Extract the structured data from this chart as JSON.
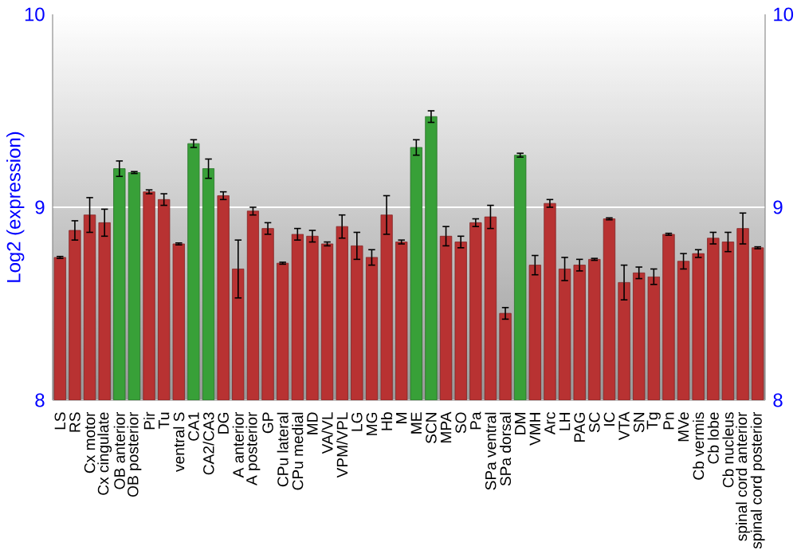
{
  "chart_data": {
    "type": "bar",
    "ylabel": "Log2 (expression)",
    "categories": [
      "LS",
      "RS",
      "Cx motor",
      "Cx cingulate",
      "OB anterior",
      "OB posterior",
      "Pir",
      "Tu",
      "ventral S",
      "CA1",
      "CA2/CA3",
      "DG",
      "A anterior",
      "A posterior",
      "GP",
      "CPu lateral",
      "CPu medial",
      "MD",
      "VA/VL",
      "VPM/VPL",
      "LG",
      "MG",
      "Hb",
      "M",
      "ME",
      "SCN",
      "MPA",
      "SO",
      "Pa",
      "SPa ventral",
      "SPa dorsal",
      "DM",
      "VMH",
      "Arc",
      "LH",
      "PAG",
      "SC",
      "IC",
      "VTA",
      "SN",
      "Tg",
      "Pn",
      "MVe",
      "Cb vermis",
      "Cb lobe",
      "Cb nucleus",
      "spinal cord anterior",
      "spinal cord posterior"
    ],
    "values": [
      8.74,
      8.88,
      8.96,
      8.92,
      9.2,
      9.18,
      9.08,
      9.04,
      8.81,
      9.33,
      9.2,
      9.06,
      8.68,
      8.98,
      8.89,
      8.71,
      8.86,
      8.85,
      8.81,
      8.9,
      8.8,
      8.74,
      8.96,
      8.82,
      9.31,
      9.47,
      8.85,
      8.82,
      8.92,
      8.95,
      8.45,
      9.27,
      8.7,
      9.02,
      8.68,
      8.7,
      8.73,
      8.94,
      8.61,
      8.66,
      8.64,
      8.86,
      8.72,
      8.76,
      8.84,
      8.82,
      8.89,
      8.79
    ],
    "errors": [
      0.005,
      0.05,
      0.09,
      0.07,
      0.04,
      0.005,
      0.01,
      0.03,
      0.005,
      0.02,
      0.05,
      0.02,
      0.15,
      0.02,
      0.03,
      0.005,
      0.03,
      0.03,
      0.01,
      0.06,
      0.07,
      0.04,
      0.1,
      0.01,
      0.04,
      0.03,
      0.05,
      0.03,
      0.02,
      0.06,
      0.03,
      0.01,
      0.05,
      0.02,
      0.06,
      0.03,
      0.005,
      0.005,
      0.09,
      0.03,
      0.04,
      0.005,
      0.04,
      0.02,
      0.03,
      0.05,
      0.08,
      0.005
    ],
    "colors": [
      "#b83232",
      "#b83232",
      "#b83232",
      "#b83232",
      "#38a038",
      "#38a038",
      "#b83232",
      "#b83232",
      "#b83232",
      "#38a038",
      "#38a038",
      "#b83232",
      "#b83232",
      "#b83232",
      "#b83232",
      "#b83232",
      "#b83232",
      "#b83232",
      "#b83232",
      "#b83232",
      "#b83232",
      "#b83232",
      "#b83232",
      "#b83232",
      "#38a038",
      "#38a038",
      "#b83232",
      "#b83232",
      "#b83232",
      "#b83232",
      "#b83232",
      "#38a038",
      "#b83232",
      "#b83232",
      "#b83232",
      "#b83232",
      "#b83232",
      "#b83232",
      "#b83232",
      "#b83232",
      "#b83232",
      "#b83232",
      "#b83232",
      "#b83232",
      "#b83232",
      "#b83232",
      "#b83232",
      "#b83232"
    ],
    "ylim": [
      8,
      10
    ],
    "yticks": [
      8,
      9,
      10
    ],
    "y2lim": [
      8,
      10
    ],
    "y2ticks": [
      8,
      9,
      10
    ],
    "grid": "y"
  }
}
